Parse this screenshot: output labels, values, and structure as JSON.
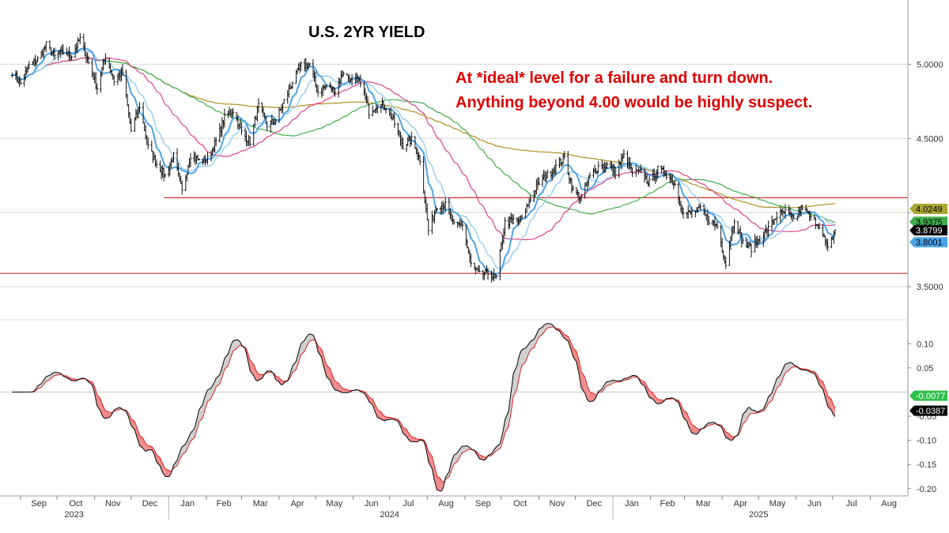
{
  "chart_data": [
    {
      "type": "line",
      "subtype": "ohlc-bar",
      "title": "U.S. 2YR YIELD",
      "annotations": [
        "At *ideal* level for a failure and turn down.",
        "Anything beyond 4.00 would be highly suspect."
      ],
      "ylim": [
        3.33,
        5.38
      ],
      "yticks": [
        {
          "value": 3.5,
          "label": "3.5000"
        },
        {
          "value": 4.0,
          "label": ""
        },
        {
          "value": 4.5,
          "label": "4.5000"
        },
        {
          "value": 5.0,
          "label": "5.0000"
        }
      ],
      "horizontal_lines": [
        {
          "value": 4.1,
          "color": "#d32f2f",
          "x_start": "2023-12-28"
        },
        {
          "value": 3.59,
          "color": "#d32f2f",
          "x_start": "2023-08-15"
        }
      ],
      "price_series": [
        {
          "date": "2023-08-25",
          "value": 4.95
        },
        {
          "date": "2023-09-01",
          "value": 4.87
        },
        {
          "date": "2023-09-08",
          "value": 4.99
        },
        {
          "date": "2023-09-15",
          "value": 5.03
        },
        {
          "date": "2023-09-22",
          "value": 5.13
        },
        {
          "date": "2023-09-29",
          "value": 5.05
        },
        {
          "date": "2023-10-06",
          "value": 5.08
        },
        {
          "date": "2023-10-13",
          "value": 5.06
        },
        {
          "date": "2023-10-20",
          "value": 5.17
        },
        {
          "date": "2023-10-27",
          "value": 5.01
        },
        {
          "date": "2023-11-03",
          "value": 4.84
        },
        {
          "date": "2023-11-10",
          "value": 5.06
        },
        {
          "date": "2023-11-17",
          "value": 4.89
        },
        {
          "date": "2023-11-24",
          "value": 4.95
        },
        {
          "date": "2023-12-01",
          "value": 4.55
        },
        {
          "date": "2023-12-08",
          "value": 4.72
        },
        {
          "date": "2023-12-15",
          "value": 4.44
        },
        {
          "date": "2023-12-22",
          "value": 4.33
        },
        {
          "date": "2023-12-29",
          "value": 4.25
        },
        {
          "date": "2024-01-05",
          "value": 4.38
        },
        {
          "date": "2024-01-12",
          "value": 4.14
        },
        {
          "date": "2024-01-19",
          "value": 4.39
        },
        {
          "date": "2024-01-26",
          "value": 4.35
        },
        {
          "date": "2024-02-02",
          "value": 4.36
        },
        {
          "date": "2024-02-09",
          "value": 4.48
        },
        {
          "date": "2024-02-16",
          "value": 4.64
        },
        {
          "date": "2024-02-23",
          "value": 4.69
        },
        {
          "date": "2024-03-01",
          "value": 4.54
        },
        {
          "date": "2024-03-08",
          "value": 4.48
        },
        {
          "date": "2024-03-15",
          "value": 4.72
        },
        {
          "date": "2024-03-22",
          "value": 4.59
        },
        {
          "date": "2024-03-29",
          "value": 4.62
        },
        {
          "date": "2024-04-05",
          "value": 4.75
        },
        {
          "date": "2024-04-12",
          "value": 4.88
        },
        {
          "date": "2024-04-19",
          "value": 4.99
        },
        {
          "date": "2024-04-26",
          "value": 5.0
        },
        {
          "date": "2024-05-03",
          "value": 4.81
        },
        {
          "date": "2024-05-10",
          "value": 4.86
        },
        {
          "date": "2024-05-17",
          "value": 4.82
        },
        {
          "date": "2024-05-24",
          "value": 4.95
        },
        {
          "date": "2024-05-31",
          "value": 4.88
        },
        {
          "date": "2024-06-07",
          "value": 4.89
        },
        {
          "date": "2024-06-14",
          "value": 4.68
        },
        {
          "date": "2024-06-21",
          "value": 4.73
        },
        {
          "date": "2024-06-28",
          "value": 4.71
        },
        {
          "date": "2024-07-05",
          "value": 4.6
        },
        {
          "date": "2024-07-12",
          "value": 4.45
        },
        {
          "date": "2024-07-19",
          "value": 4.49
        },
        {
          "date": "2024-07-26",
          "value": 4.36
        },
        {
          "date": "2024-08-02",
          "value": 3.88
        },
        {
          "date": "2024-08-09",
          "value": 4.05
        },
        {
          "date": "2024-08-16",
          "value": 4.05
        },
        {
          "date": "2024-08-23",
          "value": 3.91
        },
        {
          "date": "2024-08-30",
          "value": 3.92
        },
        {
          "date": "2024-09-06",
          "value": 3.65
        },
        {
          "date": "2024-09-13",
          "value": 3.58
        },
        {
          "date": "2024-09-20",
          "value": 3.59
        },
        {
          "date": "2024-09-27",
          "value": 3.56
        },
        {
          "date": "2024-10-04",
          "value": 3.93
        },
        {
          "date": "2024-10-11",
          "value": 3.95
        },
        {
          "date": "2024-10-18",
          "value": 3.95
        },
        {
          "date": "2024-10-25",
          "value": 4.1
        },
        {
          "date": "2024-11-01",
          "value": 4.2
        },
        {
          "date": "2024-11-08",
          "value": 4.25
        },
        {
          "date": "2024-11-15",
          "value": 4.31
        },
        {
          "date": "2024-11-22",
          "value": 4.37
        },
        {
          "date": "2024-11-29",
          "value": 4.15
        },
        {
          "date": "2024-12-06",
          "value": 4.1
        },
        {
          "date": "2024-12-13",
          "value": 4.24
        },
        {
          "date": "2024-12-20",
          "value": 4.31
        },
        {
          "date": "2024-12-27",
          "value": 4.32
        },
        {
          "date": "2025-01-03",
          "value": 4.28
        },
        {
          "date": "2025-01-10",
          "value": 4.38
        },
        {
          "date": "2025-01-17",
          "value": 4.27
        },
        {
          "date": "2025-01-24",
          "value": 4.27
        },
        {
          "date": "2025-01-31",
          "value": 4.2
        },
        {
          "date": "2025-02-07",
          "value": 4.29
        },
        {
          "date": "2025-02-14",
          "value": 4.26
        },
        {
          "date": "2025-02-21",
          "value": 4.19
        },
        {
          "date": "2025-02-28",
          "value": 3.99
        },
        {
          "date": "2025-03-07",
          "value": 4.0
        },
        {
          "date": "2025-03-14",
          "value": 4.02
        },
        {
          "date": "2025-03-21",
          "value": 3.95
        },
        {
          "date": "2025-03-28",
          "value": 3.91
        },
        {
          "date": "2025-04-04",
          "value": 3.65
        },
        {
          "date": "2025-04-11",
          "value": 3.96
        },
        {
          "date": "2025-04-18",
          "value": 3.8
        },
        {
          "date": "2025-04-25",
          "value": 3.76
        },
        {
          "date": "2025-05-02",
          "value": 3.83
        },
        {
          "date": "2025-05-09",
          "value": 3.89
        },
        {
          "date": "2025-05-16",
          "value": 3.98
        },
        {
          "date": "2025-05-23",
          "value": 4.0
        },
        {
          "date": "2025-05-30",
          "value": 3.95
        },
        {
          "date": "2025-06-06",
          "value": 4.04
        },
        {
          "date": "2025-06-13",
          "value": 3.96
        },
        {
          "date": "2025-06-20",
          "value": 3.92
        },
        {
          "date": "2025-06-27",
          "value": 3.75
        },
        {
          "date": "2025-07-03",
          "value": 3.88
        }
      ],
      "moving_averages": [
        {
          "color": "#4da3e8",
          "period_weeks": 2,
          "width": 2
        },
        {
          "color": "#8fcaf0",
          "period_weeks": 4,
          "width": 1.3
        },
        {
          "color": "#e0408a",
          "period_weeks": 10,
          "width": 1.2
        },
        {
          "color": "#3fae4a",
          "period_weeks": 20,
          "width": 1.2
        },
        {
          "color": "#b08d1e",
          "period_weeks": 40,
          "width": 1.2
        }
      ],
      "value_tags": [
        {
          "label": "4.0249",
          "value": 4.0249,
          "bg": "#a8a632",
          "fg": "#000000"
        },
        {
          "label": "3.9375",
          "value": 3.9375,
          "bg": "#3fae4a",
          "fg": "#000000"
        },
        {
          "label": "3.8799",
          "value": 3.8799,
          "bg": "#000000",
          "fg": "#ffffff"
        },
        {
          "label": "3.8001",
          "value": 3.8001,
          "bg": "#4da3e8",
          "fg": "#000000"
        }
      ]
    },
    {
      "type": "line",
      "subtype": "oscillator",
      "ylim": [
        -0.215,
        0.125
      ],
      "yticks": [
        {
          "value": 0.1,
          "label": "0.10"
        },
        {
          "value": 0.05,
          "label": "0.05"
        },
        {
          "value": -0.05,
          "label": "-0.05"
        },
        {
          "value": -0.1,
          "label": "-0.10"
        },
        {
          "value": -0.15,
          "label": "-0.15"
        },
        {
          "value": -0.2,
          "label": "-0.20"
        }
      ],
      "zero_line": 0,
      "series": [
        {
          "color": "#000000"
        },
        {
          "color": "#e02020"
        }
      ],
      "fill_colors": {
        "up": "#cfcfcf",
        "down": "#f08a8a"
      },
      "value_tags": [
        {
          "label": "-0.0077",
          "value": -0.0077,
          "bg": "#2ec04a",
          "fg": "#ffffff"
        },
        {
          "label": "-0.0387",
          "value": -0.0387,
          "bg": "#000000",
          "fg": "#ffffff"
        }
      ]
    }
  ],
  "x_axis": {
    "range": [
      "2023-08-15",
      "2025-09-01"
    ],
    "months": [
      {
        "label": "Sep",
        "date": "2023-09-01"
      },
      {
        "label": "Oct",
        "date": "2023-10-01"
      },
      {
        "label": "Nov",
        "date": "2023-11-01"
      },
      {
        "label": "Dec",
        "date": "2023-12-01"
      },
      {
        "label": "Jan",
        "date": "2024-01-01"
      },
      {
        "label": "Feb",
        "date": "2024-02-01"
      },
      {
        "label": "Mar",
        "date": "2024-03-01"
      },
      {
        "label": "Apr",
        "date": "2024-04-01"
      },
      {
        "label": "May",
        "date": "2024-05-01"
      },
      {
        "label": "Jun",
        "date": "2024-06-01"
      },
      {
        "label": "Jul",
        "date": "2024-07-01"
      },
      {
        "label": "Aug",
        "date": "2024-08-01"
      },
      {
        "label": "Sep",
        "date": "2024-09-01"
      },
      {
        "label": "Oct",
        "date": "2024-10-01"
      },
      {
        "label": "Nov",
        "date": "2024-11-01"
      },
      {
        "label": "Dec",
        "date": "2024-12-01"
      },
      {
        "label": "Jan",
        "date": "2025-01-01"
      },
      {
        "label": "Feb",
        "date": "2025-02-01"
      },
      {
        "label": "Mar",
        "date": "2025-03-01"
      },
      {
        "label": "Apr",
        "date": "2025-04-01"
      },
      {
        "label": "May",
        "date": "2025-05-01"
      },
      {
        "label": "Jun",
        "date": "2025-06-01"
      },
      {
        "label": "Jul",
        "date": "2025-07-01"
      },
      {
        "label": "Aug",
        "date": "2025-08-01"
      }
    ],
    "years": [
      {
        "label": "2023",
        "date": "2023-10-15"
      },
      {
        "label": "2024",
        "date": "2024-07-01"
      },
      {
        "label": "2025",
        "date": "2025-05-01"
      }
    ]
  }
}
